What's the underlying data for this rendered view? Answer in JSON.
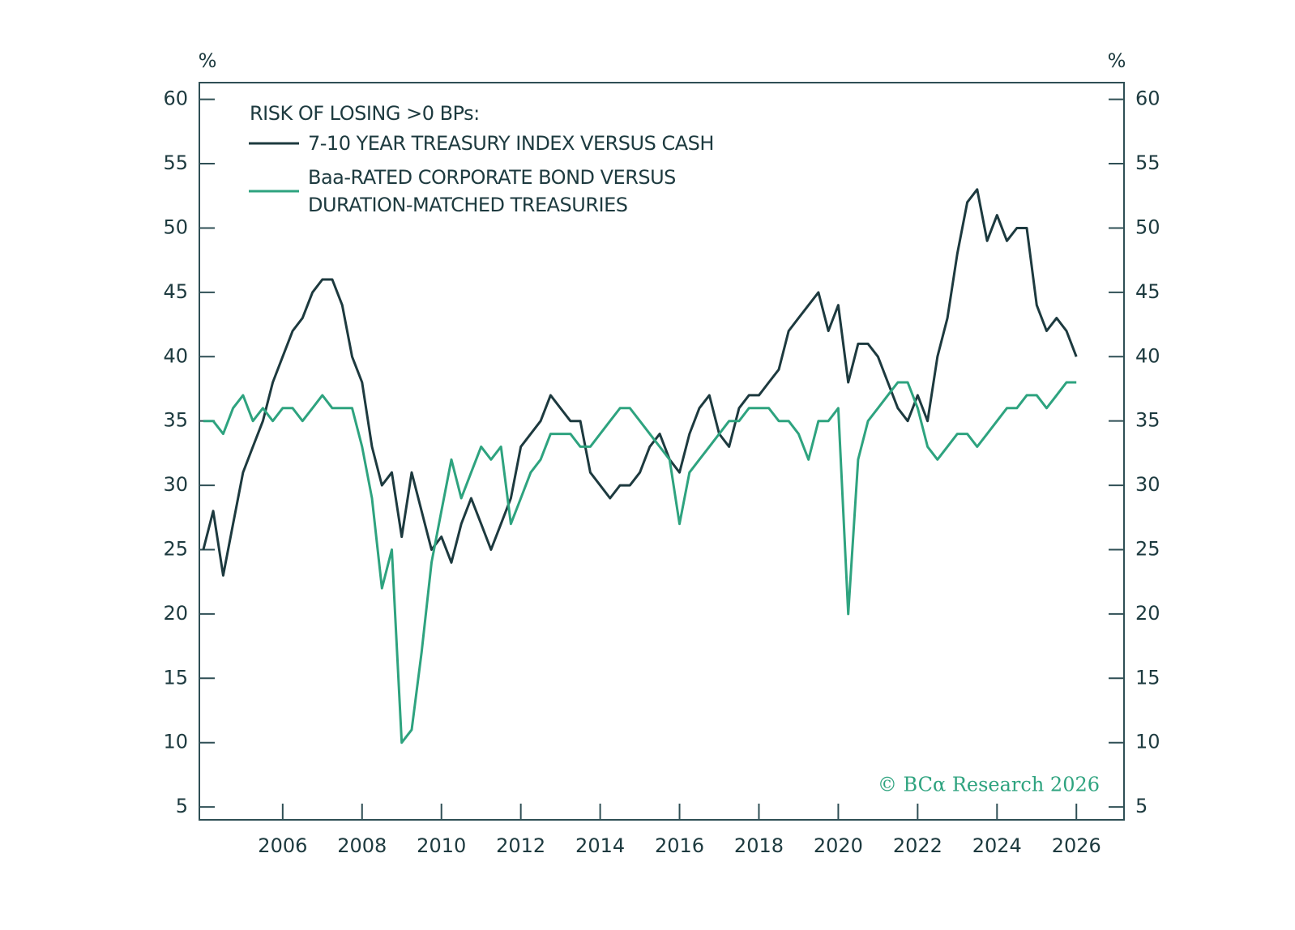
{
  "chart_data": {
    "type": "line",
    "title": "RISK OF LOSING >0 BPs:",
    "y_unit": "%",
    "y2_unit": "%",
    "annotation": "© BCα Research 2026",
    "x": [
      2004,
      2004.25,
      2004.5,
      2004.75,
      2005,
      2005.25,
      2005.5,
      2005.75,
      2006,
      2006.25,
      2006.5,
      2006.75,
      2007,
      2007.25,
      2007.5,
      2007.75,
      2008,
      2008.25,
      2008.5,
      2008.75,
      2009,
      2009.25,
      2009.5,
      2009.75,
      2010,
      2010.25,
      2010.5,
      2010.75,
      2011,
      2011.25,
      2011.5,
      2011.75,
      2012,
      2012.25,
      2012.5,
      2012.75,
      2013,
      2013.25,
      2013.5,
      2013.75,
      2014,
      2014.25,
      2014.5,
      2014.75,
      2015,
      2015.25,
      2015.5,
      2015.75,
      2016,
      2016.25,
      2016.5,
      2016.75,
      2017,
      2017.25,
      2017.5,
      2017.75,
      2018,
      2018.25,
      2018.5,
      2018.75,
      2019,
      2019.25,
      2019.5,
      2019.75,
      2020,
      2020.25,
      2020.5,
      2020.75,
      2021,
      2021.25,
      2021.5,
      2021.75,
      2022,
      2022.25,
      2022.5,
      2022.75,
      2023,
      2023.25,
      2023.5,
      2023.75,
      2024,
      2024.25,
      2024.5,
      2024.75,
      2025,
      2025.25,
      2025.5,
      2025.75,
      2026
    ],
    "series": [
      {
        "name": "7-10 YEAR TREASURY INDEX VERSUS CASH",
        "color": "#1d3a3f",
        "values": [
          25,
          28,
          23,
          27,
          31,
          33,
          35,
          38,
          40,
          42,
          43,
          45,
          46,
          46,
          44,
          40,
          38,
          33,
          30,
          31,
          26,
          31,
          28,
          25,
          26,
          24,
          27,
          29,
          27,
          25,
          27,
          29,
          33,
          34,
          35,
          37,
          36,
          35,
          35,
          31,
          30,
          29,
          30,
          30,
          31,
          33,
          34,
          32,
          31,
          34,
          36,
          37,
          34,
          33,
          36,
          37,
          37,
          38,
          39,
          42,
          43,
          44,
          45,
          42,
          44,
          38,
          41,
          41,
          40,
          38,
          36,
          35,
          37,
          35,
          40,
          43,
          48,
          52,
          53,
          49,
          51,
          49,
          50,
          50,
          44,
          42,
          43,
          42,
          40
        ]
      },
      {
        "name": "Baa-RATED CORPORATE BOND VERSUS DURATION-MATCHED TREASURIES",
        "color": "#2ea37f",
        "values": [
          35,
          35,
          34,
          36,
          37,
          35,
          36,
          35,
          36,
          36,
          35,
          36,
          37,
          36,
          36,
          36,
          33,
          29,
          22,
          25,
          10,
          11,
          17,
          24,
          28,
          32,
          29,
          31,
          33,
          32,
          33,
          27,
          29,
          31,
          32,
          34,
          34,
          34,
          33,
          33,
          34,
          35,
          36,
          36,
          35,
          34,
          33,
          32,
          27,
          31,
          32,
          33,
          34,
          35,
          35,
          36,
          36,
          36,
          35,
          35,
          34,
          32,
          35,
          35,
          36,
          20,
          32,
          35,
          36,
          37,
          38,
          38,
          36,
          33,
          32,
          33,
          34,
          34,
          33,
          34,
          35,
          36,
          36,
          37,
          37,
          36,
          37,
          38,
          38
        ]
      }
    ],
    "xlim": [
      2003.9,
      2027.2
    ],
    "xticks": [
      2006,
      2008,
      2010,
      2012,
      2014,
      2016,
      2018,
      2020,
      2022,
      2024,
      2026
    ],
    "ylim": [
      4,
      61.3
    ],
    "yticks": [
      5,
      10,
      15,
      20,
      25,
      30,
      35,
      40,
      45,
      50,
      55,
      60
    ],
    "y2lim": [
      4,
      61.3
    ],
    "y2ticks": [
      5,
      10,
      15,
      20,
      25,
      30,
      35,
      40,
      45,
      50,
      55,
      60
    ],
    "grid": false
  }
}
